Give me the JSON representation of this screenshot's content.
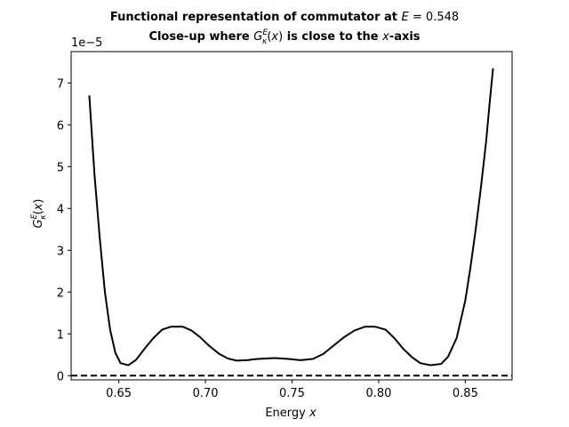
{
  "chart_data": {
    "type": "line",
    "title_line1": "Functional representation of commutator at E = 0.548",
    "title_line2": "Close-up where G_κ^E(x) is close to the x-axis",
    "xlabel": "Energy x",
    "ylabel": "G_κ^E(x)",
    "y_offset_text": "1e−5",
    "y_scale": 1e-05,
    "xlim": [
      0.6225,
      0.877
    ],
    "ylim": [
      -1e-06,
      7.75e-05
    ],
    "x_ticks": [
      0.65,
      0.7,
      0.75,
      0.8,
      0.85
    ],
    "x_tick_labels": [
      "0.65",
      "0.70",
      "0.75",
      "0.80",
      "0.85"
    ],
    "y_ticks": [
      0,
      1e-05,
      2e-05,
      3e-05,
      4e-05,
      5e-05,
      6e-05,
      7e-05
    ],
    "y_tick_labels": [
      "0",
      "1",
      "2",
      "3",
      "4",
      "5",
      "6",
      "7"
    ],
    "grid": false,
    "series": [
      {
        "color": "#000000",
        "style": "solid",
        "x": [
          0.633,
          0.636,
          0.639,
          0.642,
          0.645,
          0.648,
          0.651,
          0.6555,
          0.66,
          0.665,
          0.67,
          0.675,
          0.68,
          0.687,
          0.692,
          0.697,
          0.702,
          0.708,
          0.713,
          0.718,
          0.724,
          0.73,
          0.74,
          0.748,
          0.755,
          0.762,
          0.768,
          0.774,
          0.78,
          0.786,
          0.792,
          0.798,
          0.804,
          0.809,
          0.814,
          0.819,
          0.824,
          0.83,
          0.836,
          0.84,
          0.845,
          0.85,
          0.853,
          0.856,
          0.859,
          0.862,
          0.864,
          0.866
        ],
        "y": [
          6.7e-05,
          4.8e-05,
          3.3e-05,
          2e-05,
          1.1e-05,
          5.5e-06,
          3e-06,
          2.5e-06,
          3.8e-06,
          6.5e-06,
          9e-06,
          1.1e-05,
          1.17e-05,
          1.17e-05,
          1.08e-05,
          9.2e-06,
          7.2e-06,
          5.2e-06,
          4.1e-06,
          3.6e-06,
          3.7e-06,
          4e-06,
          4.2e-06,
          4e-06,
          3.7e-06,
          4e-06,
          5.2e-06,
          7.2e-06,
          9.2e-06,
          1.08e-05,
          1.17e-05,
          1.17e-05,
          1.1e-05,
          9e-06,
          6.5e-06,
          4.5e-06,
          3e-06,
          2.5e-06,
          2.8e-06,
          4.5e-06,
          9e-06,
          1.8e-05,
          2.6e-05,
          3.5e-05,
          4.5e-05,
          5.6e-05,
          6.5e-05,
          7.35e-05
        ]
      },
      {
        "color": "#000000",
        "style": "dashed",
        "x": [
          0.6225,
          0.877
        ],
        "y": [
          0,
          0
        ]
      }
    ]
  }
}
